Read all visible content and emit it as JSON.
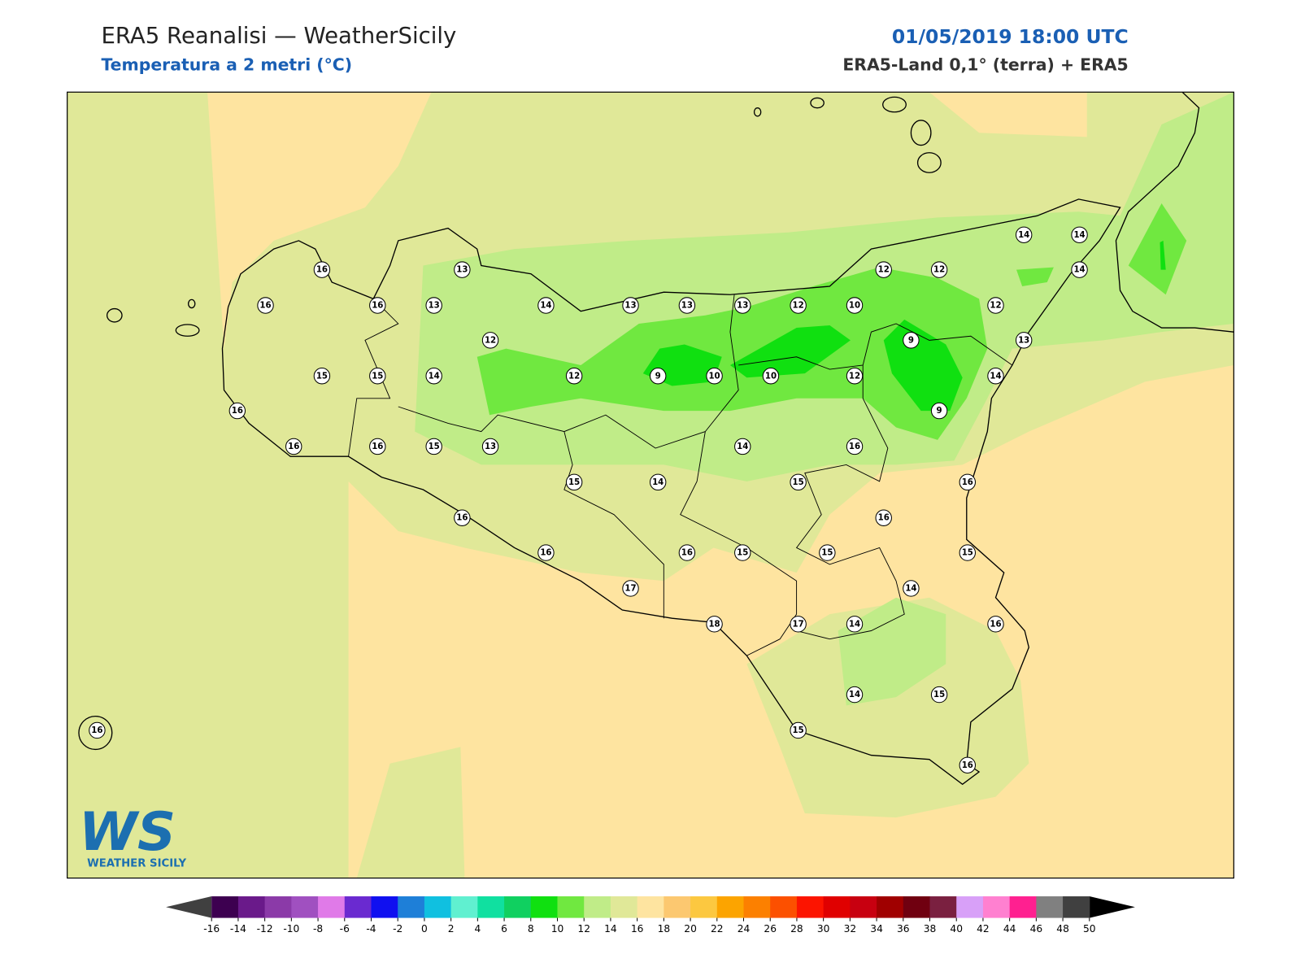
{
  "header": {
    "title": "ERA5 Reanalisi — WeatherSicily",
    "subtitle": "Temperatura a 2 metri (°C)",
    "datetime": "01/05/2019 18:00 UTC",
    "source": "ERA5-Land 0,1° (terra) + ERA5"
  },
  "stations": [
    16,
    16,
    16,
    13,
    13,
    14,
    13,
    13,
    13,
    12,
    10,
    12,
    12,
    14,
    14,
    14,
    12,
    13,
    9,
    12,
    15,
    15,
    14,
    12,
    9,
    10,
    10,
    12,
    14,
    9,
    16,
    16,
    16,
    15,
    13,
    14,
    16,
    15,
    14,
    15,
    16,
    16,
    16,
    16,
    16,
    15,
    15,
    15,
    17,
    14,
    18,
    17,
    14,
    16,
    14,
    15,
    15,
    16,
    16
  ],
  "logo": {
    "mark": "WS",
    "name": "WEATHER SICILY"
  },
  "colorbar": {
    "ticks": [
      -16,
      -14,
      -12,
      -10,
      -8,
      -6,
      -4,
      -2,
      0,
      2,
      4,
      6,
      8,
      10,
      12,
      14,
      16,
      18,
      20,
      22,
      24,
      26,
      28,
      30,
      32,
      34,
      36,
      38,
      40,
      42,
      44,
      46,
      48,
      50
    ],
    "under_color": "#404040",
    "over_color": "#000000",
    "colors": [
      "#3d0050",
      "#6a1a8a",
      "#8b3aa8",
      "#a050c0",
      "#e07ae8",
      "#6a2ad0",
      "#1010f0",
      "#1e7fd8",
      "#10c0e0",
      "#60f0d0",
      "#10e0a0",
      "#10d060",
      "#10e010",
      "#70e840",
      "#c0ec88",
      "#e0e898",
      "#fee4a0",
      "#fcc870",
      "#fcc840",
      "#fca400",
      "#fc8000",
      "#fc5000",
      "#fc1400",
      "#e00000",
      "#c80010",
      "#a00000",
      "#700010",
      "#7a2040",
      "#d8a0f8",
      "#ff80d0",
      "#ff2090",
      "#808080",
      "#404040"
    ]
  }
}
